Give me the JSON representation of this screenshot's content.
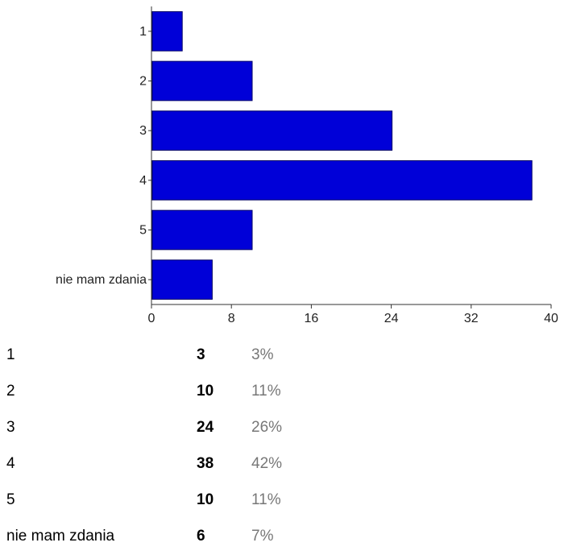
{
  "chart_data": {
    "type": "bar",
    "orientation": "horizontal",
    "categories": [
      "1",
      "2",
      "3",
      "4",
      "5",
      "nie mam zdania"
    ],
    "values": [
      3,
      10,
      24,
      38,
      10,
      6
    ],
    "xlim": [
      0,
      40
    ],
    "xticks": [
      "0",
      "8",
      "16",
      "24",
      "32",
      "40"
    ],
    "grid": false,
    "bar_color": "#0000d8"
  },
  "summary": {
    "rows": [
      {
        "label": "1",
        "count": "3",
        "percent": "3%"
      },
      {
        "label": "2",
        "count": "10",
        "percent": "11%"
      },
      {
        "label": "3",
        "count": "24",
        "percent": "26%"
      },
      {
        "label": "4",
        "count": "38",
        "percent": "42%"
      },
      {
        "label": "5",
        "count": "10",
        "percent": "11%"
      },
      {
        "label": "nie mam zdania",
        "count": "6",
        "percent": "7%"
      }
    ]
  }
}
